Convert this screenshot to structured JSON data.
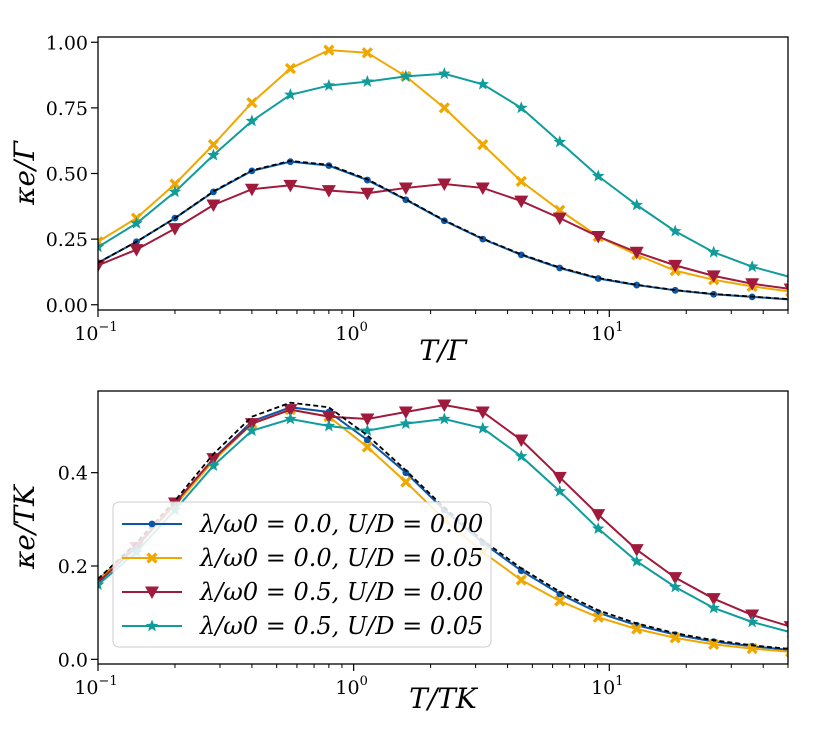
{
  "chart_data": [
    {
      "type": "line",
      "xscale": "log",
      "xlim": [
        0.1,
        50
      ],
      "ylim": [
        -0.02,
        1.02
      ],
      "xticks": [
        {
          "v": 0.1,
          "label": "10"
        },
        {
          "v": 1,
          "label": "10"
        },
        {
          "v": 10,
          "label": "10"
        }
      ],
      "xtick_exps": [
        "−1",
        "0",
        "1"
      ],
      "yticks": [
        {
          "v": 0.0,
          "label": "0.00"
        },
        {
          "v": 0.25,
          "label": "0.25"
        },
        {
          "v": 0.5,
          "label": "0.50"
        },
        {
          "v": 0.75,
          "label": "0.75"
        },
        {
          "v": 1.0,
          "label": "1.00"
        }
      ],
      "xlabel": "T/Γ",
      "ylabel": "κe/Γ",
      "x": [
        0.1,
        0.1414,
        0.2,
        0.2828,
        0.4,
        0.5657,
        0.8,
        1.1314,
        1.6,
        2.2627,
        3.2,
        4.5255,
        6.4,
        9.051,
        12.8,
        18.102,
        25.6,
        36.204,
        51.2
      ],
      "series": [
        {
          "name": "λ/ω0 = 0.0, U/D = 0.00",
          "color": "#0b56a5",
          "marker": "dot",
          "values": [
            0.16,
            0.24,
            0.33,
            0.43,
            0.51,
            0.545,
            0.53,
            0.475,
            0.4,
            0.32,
            0.25,
            0.19,
            0.14,
            0.1,
            0.075,
            0.055,
            0.04,
            0.03,
            0.02
          ]
        },
        {
          "name": "λ/ω0 = 0.0, U/D = 0.05",
          "color": "#f0a800",
          "marker": "x",
          "values": [
            0.24,
            0.33,
            0.46,
            0.61,
            0.77,
            0.9,
            0.97,
            0.96,
            0.87,
            0.75,
            0.61,
            0.47,
            0.36,
            0.26,
            0.19,
            0.13,
            0.095,
            0.07,
            0.05
          ]
        },
        {
          "name": "λ/ω0 = 0.5, U/D = 0.00",
          "color": "#a01a3c",
          "marker": "tri",
          "values": [
            0.15,
            0.21,
            0.29,
            0.38,
            0.44,
            0.455,
            0.435,
            0.425,
            0.445,
            0.46,
            0.445,
            0.395,
            0.33,
            0.26,
            0.2,
            0.15,
            0.11,
            0.08,
            0.06
          ]
        },
        {
          "name": "λ/ω0 = 0.5, U/D = 0.05",
          "color": "#119c9c",
          "marker": "star",
          "values": [
            0.22,
            0.31,
            0.43,
            0.57,
            0.7,
            0.8,
            0.835,
            0.85,
            0.87,
            0.88,
            0.84,
            0.75,
            0.62,
            0.49,
            0.38,
            0.28,
            0.2,
            0.145,
            0.105
          ]
        }
      ],
      "reference_dashed": [
        0.16,
        0.24,
        0.33,
        0.432,
        0.512,
        0.548,
        0.533,
        0.478,
        0.402,
        0.322,
        0.252,
        0.192,
        0.142,
        0.102,
        0.076,
        0.056,
        0.041,
        0.031,
        0.021
      ]
    },
    {
      "type": "line",
      "xscale": "log",
      "xlim": [
        0.1,
        50
      ],
      "ylim": [
        -0.01,
        0.575
      ],
      "xticks": [
        {
          "v": 0.1,
          "label": "10"
        },
        {
          "v": 1,
          "label": "10"
        },
        {
          "v": 10,
          "label": "10"
        }
      ],
      "xtick_exps": [
        "−1",
        "0",
        "1"
      ],
      "yticks": [
        {
          "v": 0.0,
          "label": "0.0"
        },
        {
          "v": 0.2,
          "label": "0.2"
        },
        {
          "v": 0.4,
          "label": "0.4"
        }
      ],
      "xlabel": "T/TK",
      "ylabel": "κe/TK",
      "x": [
        0.1,
        0.1414,
        0.2,
        0.2828,
        0.4,
        0.5657,
        0.8,
        1.1314,
        1.6,
        2.2627,
        3.2,
        4.5255,
        6.4,
        9.051,
        12.8,
        18.102,
        25.6,
        36.204,
        51.2
      ],
      "series": [
        {
          "name": "λ/ω0 = 0.0, U/D = 0.00",
          "color": "#0b56a5",
          "marker": "dot",
          "values": [
            0.17,
            0.245,
            0.33,
            0.43,
            0.51,
            0.54,
            0.53,
            0.47,
            0.4,
            0.32,
            0.25,
            0.19,
            0.14,
            0.1,
            0.073,
            0.053,
            0.038,
            0.028,
            0.02
          ]
        },
        {
          "name": "λ/ω0 = 0.0, U/D = 0.05",
          "color": "#f0a800",
          "marker": "x",
          "values": [
            0.17,
            0.24,
            0.33,
            0.425,
            0.505,
            0.535,
            0.52,
            0.455,
            0.38,
            0.3,
            0.23,
            0.17,
            0.125,
            0.09,
            0.065,
            0.046,
            0.032,
            0.023,
            0.016
          ]
        },
        {
          "name": "λ/ω0 = 0.5, U/D = 0.00",
          "color": "#a01a3c",
          "marker": "tri",
          "values": [
            0.165,
            0.24,
            0.335,
            0.43,
            0.505,
            0.535,
            0.52,
            0.515,
            0.53,
            0.545,
            0.53,
            0.47,
            0.39,
            0.31,
            0.235,
            0.175,
            0.13,
            0.095,
            0.07
          ]
        },
        {
          "name": "λ/ω0 = 0.5, U/D = 0.05",
          "color": "#119c9c",
          "marker": "star",
          "values": [
            0.16,
            0.23,
            0.32,
            0.415,
            0.49,
            0.515,
            0.5,
            0.49,
            0.505,
            0.515,
            0.495,
            0.435,
            0.36,
            0.28,
            0.21,
            0.155,
            0.11,
            0.08,
            0.058
          ]
        }
      ],
      "reference_dashed": [
        0.172,
        0.25,
        0.34,
        0.44,
        0.52,
        0.55,
        0.54,
        0.48,
        0.405,
        0.325,
        0.255,
        0.195,
        0.145,
        0.105,
        0.077,
        0.056,
        0.041,
        0.03,
        0.022
      ]
    }
  ],
  "legend": {
    "placement": "lower-left",
    "entries": [
      "λ/ω0 = 0.0, U/D = 0.00",
      "λ/ω0 = 0.0, U/D = 0.05",
      "λ/ω0 = 0.5, U/D = 0.00",
      "λ/ω0 = 0.5, U/D = 0.05"
    ]
  }
}
